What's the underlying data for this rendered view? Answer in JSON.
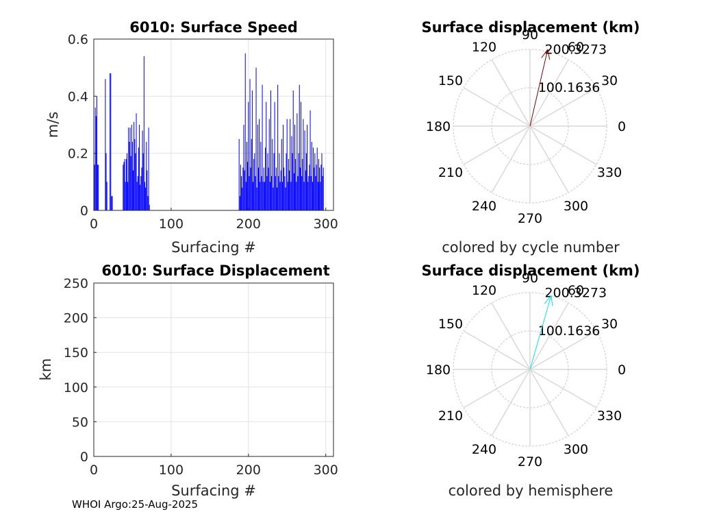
{
  "footer": "WHOI Argo:25-Aug-2025",
  "chart_data": [
    {
      "type": "bar",
      "title": "6010: Surface Speed",
      "xlabel": "Surfacing #",
      "ylabel": "m/s",
      "xlim": [
        0,
        310
      ],
      "ylim": [
        0,
        0.6
      ],
      "xticks": [
        0,
        100,
        200,
        300
      ],
      "yticks": [
        0,
        0.2,
        0.4,
        0.6
      ],
      "xtick_labels": [
        "0",
        "100",
        "200",
        "300"
      ],
      "ytick_labels": [
        "0",
        "0.2",
        "0.4",
        "0.6"
      ],
      "grid": true,
      "color": "#0000ff",
      "series": [
        {
          "values": [
            0.16,
            0.36,
            0.33,
            0.4,
            0.16,
            0.16,
            0,
            0,
            0,
            0,
            0,
            0,
            0,
            0,
            0.46,
            0.2,
            0.1,
            0,
            0,
            0,
            0.48,
            0.48,
            0.05,
            0.05,
            0,
            0,
            0,
            0,
            0,
            0,
            0,
            0,
            0,
            0,
            0,
            0,
            0,
            0.16,
            0.17,
            0.18,
            0.1,
            0.18,
            0.2,
            0.1,
            0.29,
            0.24,
            0.29,
            0.19,
            0.3,
            0.24,
            0.14,
            0.31,
            0.25,
            0.2,
            0.34,
            0.1,
            0.12,
            0.22,
            0.3,
            0.09,
            0.12,
            0.15,
            0.28,
            0.2,
            0.54,
            0.1,
            0.08,
            0.24,
            0.14,
            0.05,
            0.29,
            0.02,
            0,
            0,
            0,
            0,
            0,
            0,
            0,
            0,
            0,
            0,
            0,
            0,
            0,
            0,
            0,
            0,
            0,
            0,
            0,
            0,
            0,
            0,
            0,
            0,
            0,
            0,
            0,
            0,
            0,
            0,
            0,
            0,
            0,
            0,
            0,
            0,
            0,
            0,
            0,
            0,
            0,
            0,
            0,
            0,
            0,
            0,
            0,
            0,
            0,
            0,
            0,
            0,
            0,
            0,
            0,
            0,
            0,
            0,
            0,
            0,
            0,
            0,
            0,
            0,
            0,
            0,
            0,
            0,
            0,
            0,
            0,
            0,
            0,
            0,
            0,
            0,
            0,
            0,
            0,
            0,
            0,
            0,
            0,
            0,
            0,
            0,
            0,
            0,
            0,
            0,
            0,
            0,
            0,
            0,
            0,
            0,
            0,
            0,
            0,
            0,
            0,
            0,
            0,
            0,
            0,
            0,
            0,
            0,
            0,
            0,
            0,
            0,
            0,
            0,
            0,
            0.25,
            0.05,
            0.16,
            0.12,
            0.08,
            0.15,
            0.3,
            0.14,
            0.55,
            0.1,
            0.24,
            0.17,
            0.38,
            0.12,
            0.46,
            0.15,
            0.25,
            0.42,
            0.1,
            0.18,
            0.2,
            0.12,
            0.5,
            0.08,
            0.3,
            0.15,
            0.32,
            0.1,
            0.24,
            0.12,
            0.44,
            0.1,
            0.15,
            0.1,
            0.22,
            0.38,
            0.12,
            0.2,
            0.15,
            0.32,
            0.1,
            0.42,
            0.12,
            0.25,
            0.08,
            0.2,
            0.38,
            0.12,
            0.15,
            0.08,
            0.44,
            0.12,
            0.2,
            0.1,
            0.14,
            0.25,
            0.1,
            0.3,
            0.15,
            0.12,
            0.08,
            0.2,
            0.32,
            0.1,
            0.18,
            0.14,
            0.32,
            0.1,
            0.26,
            0.2,
            0.42,
            0.13,
            0.3,
            0.18,
            0.1,
            0.34,
            0.12,
            0.2,
            0.44,
            0.15,
            0.38,
            0.12,
            0.18,
            0.32,
            0.1,
            0.28,
            0.14,
            0.2,
            0.3,
            0.1,
            0.12,
            0.16,
            0.35,
            0.12,
            0.24,
            0.1,
            0.22,
            0.15,
            0.2,
            0.12,
            0.16,
            0.22,
            0.1,
            0.18,
            0.15,
            0.1,
            0.16,
            0.2,
            0.12,
            0.15
          ]
        }
      ]
    },
    {
      "type": "polar",
      "title": "Surface displacement (km)",
      "caption": "colored by cycle number",
      "theta_ticks": [
        "0",
        "30",
        "60",
        "90",
        "120",
        "150",
        "180",
        "210",
        "240",
        "270",
        "300",
        "330"
      ],
      "r_ticks": [
        "100.1636",
        "200.3273"
      ],
      "r_max": 200.3273,
      "grid": true,
      "series": [
        {
          "direction_deg": 77,
          "length_km": 205,
          "color": "#800000"
        }
      ]
    },
    {
      "type": "line",
      "title": "6010: Surface Displacement",
      "xlabel": "Surfacing #",
      "ylabel": "km",
      "xlim": [
        0,
        310
      ],
      "ylim": [
        0,
        250
      ],
      "xticks": [
        0,
        100,
        200,
        300
      ],
      "yticks": [
        0,
        50,
        100,
        150,
        200,
        250
      ],
      "xtick_labels": [
        "0",
        "100",
        "200",
        "300"
      ],
      "ytick_labels": [
        "0",
        "50",
        "100",
        "150",
        "200",
        "250"
      ],
      "grid": true,
      "series": []
    },
    {
      "type": "polar",
      "title": "Surface displacement (km)",
      "caption": "colored by hemisphere",
      "theta_ticks": [
        "0",
        "30",
        "60",
        "90",
        "120",
        "150",
        "180",
        "210",
        "240",
        "270",
        "300",
        "330"
      ],
      "r_ticks": [
        "100.1636",
        "200.3273"
      ],
      "r_max": 200.3273,
      "grid": true,
      "series": [
        {
          "direction_deg": 74,
          "length_km": 200,
          "color": "#00e5ee"
        }
      ]
    }
  ]
}
